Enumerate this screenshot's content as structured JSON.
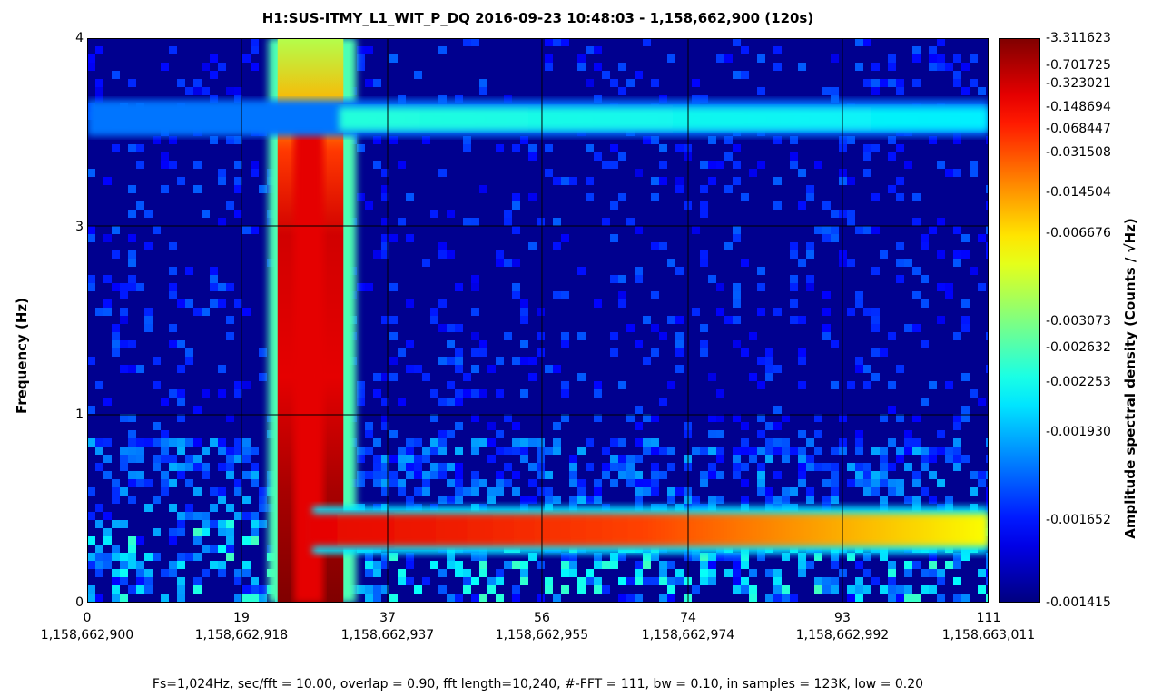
{
  "title": "H1:SUS-ITMY_L1_WIT_P_DQ 2016-09-23 10:48:03 - 1,158,662,900 (120s)",
  "footer": "Fs=1,024Hz, sec/fft = 10.00, overlap = 0.90, fft length=10,240, #-FFT = 111, bw = 0.10, in samples = 123K, low = 0.20",
  "chart_data": {
    "type": "heatmap",
    "title": "H1:SUS-ITMY_L1_WIT_P_DQ 2016-09-23 10:48:03 - 1,158,662,900 (120s)",
    "ylabel": "Frequency (Hz)",
    "colorbar_label": "Amplitude spectral density (Counts / √Hz)",
    "colormap": "jet",
    "x_ticks": [
      {
        "value": 0,
        "label": "0",
        "sublabel": "1,158,662,900"
      },
      {
        "value": 19,
        "label": "19",
        "sublabel": "1,158,662,918"
      },
      {
        "value": 37,
        "label": "37",
        "sublabel": "1,158,662,937"
      },
      {
        "value": 56,
        "label": "56",
        "sublabel": "1,158,662,955"
      },
      {
        "value": 74,
        "label": "74",
        "sublabel": "1,158,662,974"
      },
      {
        "value": 93,
        "label": "93",
        "sublabel": "1,158,662,992"
      },
      {
        "value": 111,
        "label": "111",
        "sublabel": "1,158,663,011"
      }
    ],
    "y_ticks": [
      "0",
      "1",
      "3",
      "4"
    ],
    "xlim": [
      0,
      111
    ],
    "grid": true,
    "colorbar_ticks": [
      {
        "label": "3.311623",
        "level": 1.0
      },
      {
        "label": "0.701725",
        "level": 0.952
      },
      {
        "label": "0.323021",
        "level": 0.919
      },
      {
        "label": "0.148694",
        "level": 0.878
      },
      {
        "label": "0.068447",
        "level": 0.84
      },
      {
        "label": "0.031508",
        "level": 0.798
      },
      {
        "label": "0.014504",
        "level": 0.727
      },
      {
        "label": "0.006676",
        "level": 0.654
      },
      {
        "label": "0.003073",
        "level": 0.498
      },
      {
        "label": "0.002632",
        "level": 0.451
      },
      {
        "label": "0.002253",
        "level": 0.39
      },
      {
        "label": "0.001930",
        "level": 0.302
      },
      {
        "label": "0.001652",
        "level": 0.147
      },
      {
        "label": "0.001415",
        "level": 0.0
      }
    ],
    "features": [
      {
        "name": "broadband transient",
        "x_range": [
          23,
          32
        ],
        "max_level": 1.0
      },
      {
        "name": "line at ~0.6 Hz",
        "x_range": [
          30,
          111
        ],
        "level_start": 0.9,
        "level_end": 0.62
      },
      {
        "name": "line at ~3.5 Hz",
        "x_range": [
          31,
          111
        ],
        "level": 0.36
      }
    ]
  }
}
